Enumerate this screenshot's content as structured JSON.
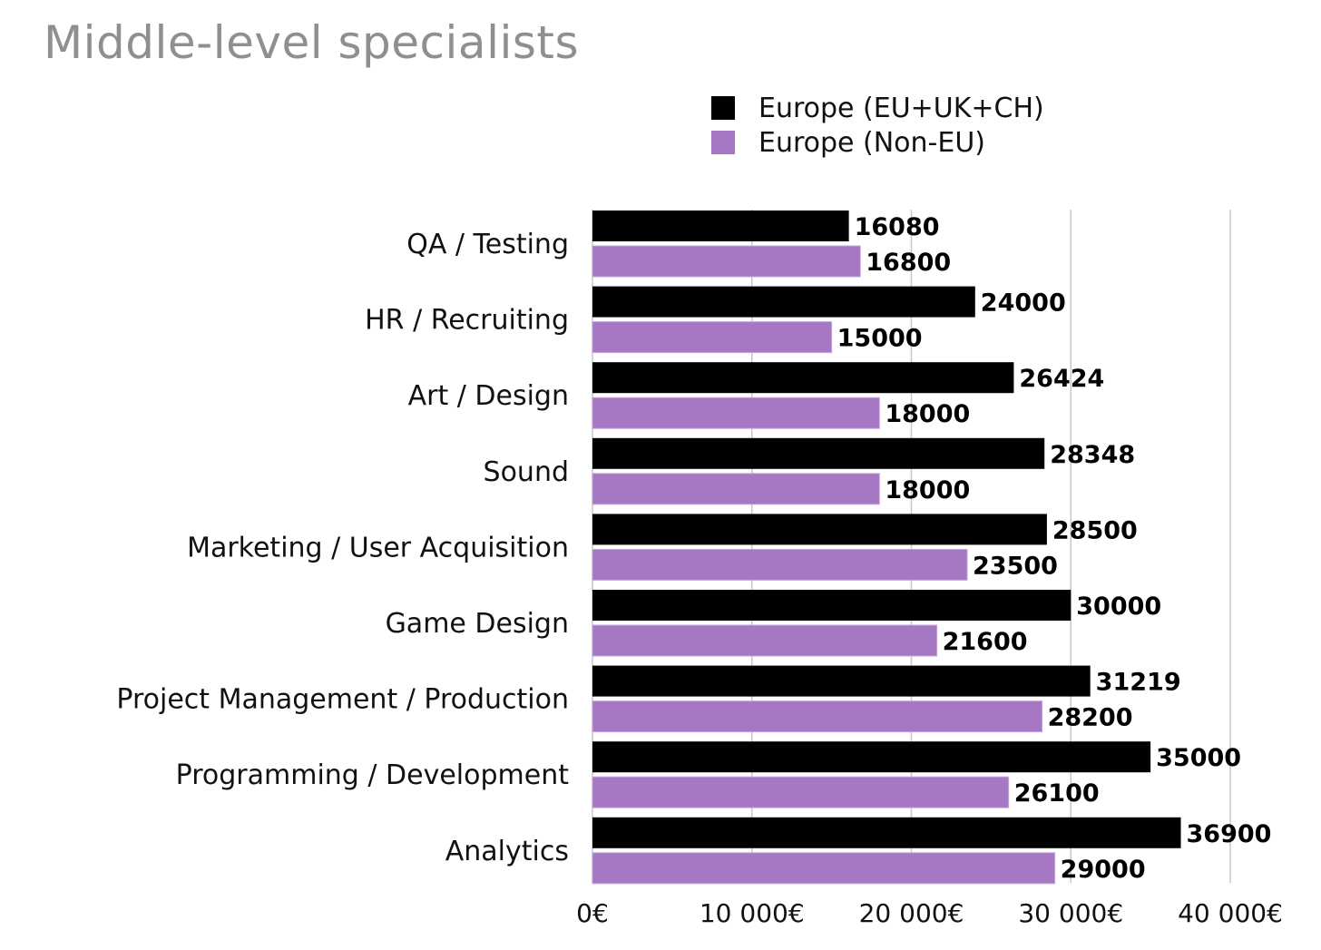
{
  "chart_data": {
    "type": "bar",
    "orientation": "horizontal",
    "title": "Middle-level specialists",
    "categories": [
      "QA / Testing",
      "HR / Recruiting",
      "Art / Design",
      "Sound",
      "Marketing / User Acquisition",
      "Game Design",
      "Project Management / Production",
      "Programming / Development",
      "Analytics"
    ],
    "series": [
      {
        "name": "Europe (EU+UK+CH)",
        "color": "#000000",
        "values": [
          16080,
          24000,
          26424,
          28348,
          28500,
          30000,
          31219,
          35000,
          36900
        ]
      },
      {
        "name": "Europe (Non-EU)",
        "color": "#a678c4",
        "values": [
          16800,
          15000,
          18000,
          18000,
          23500,
          21600,
          28200,
          26100,
          29000
        ]
      }
    ],
    "xlim": [
      0,
      40000
    ],
    "x_ticks": [
      0,
      10000,
      20000,
      30000,
      40000
    ],
    "x_tick_labels": [
      "0€",
      "10 000€",
      "20 000€",
      "30 000€",
      "40 000€"
    ],
    "xlabel": "",
    "ylabel": "",
    "grid": "vertical",
    "legend_position": "top-right",
    "data_labels": true
  }
}
